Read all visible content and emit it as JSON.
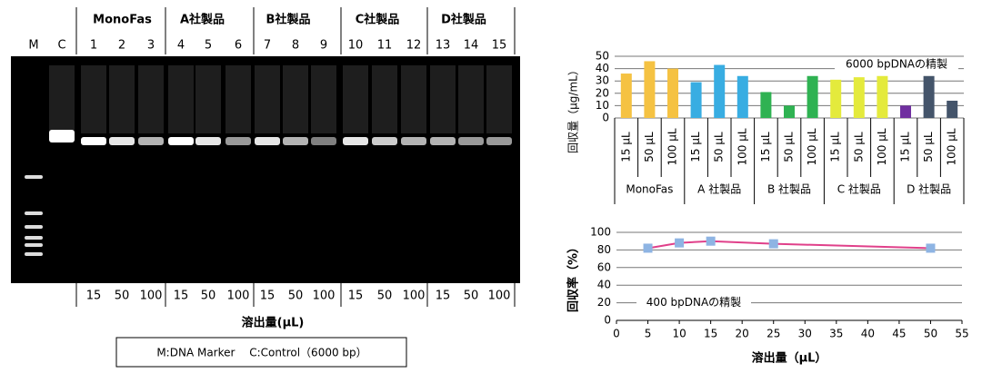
{
  "gel": {
    "groups": [
      "MonoFas",
      "A社製品",
      "B社製品",
      "C社製品",
      "D社製品"
    ],
    "lanes": [
      "M",
      "C",
      "1",
      "2",
      "3",
      "4",
      "5",
      "6",
      "7",
      "8",
      "9",
      "10",
      "11",
      "12",
      "13",
      "14",
      "15"
    ],
    "volumes": [
      "15",
      "50",
      "100",
      "15",
      "50",
      "100",
      "15",
      "50",
      "100",
      "15",
      "50",
      "100",
      "15",
      "50",
      "100"
    ],
    "xlabel": "溶出量(μL)",
    "legend": "M:DNA Marker　 C:Control（6000 bp）"
  },
  "chart_data": [
    {
      "type": "bar",
      "ylabel": "回収量（μg/mL）",
      "annotation": "6000 bpDNAの精製",
      "categories": [
        "15 μL",
        "50 μL",
        "100 μL",
        "15 μL",
        "50 μL",
        "100 μL",
        "15 μL",
        "50 μL",
        "100 μL",
        "15 μL",
        "50 μL",
        "100 μL",
        "15 μL",
        "50 μL",
        "100 μL"
      ],
      "groups": [
        "MonoFas",
        "A 社製品",
        "B 社製品",
        "C 社製品",
        "D 社製品"
      ],
      "values": [
        36,
        46,
        40,
        29,
        43,
        34,
        21,
        10,
        34,
        31,
        33,
        34,
        10,
        34,
        14
      ],
      "colors": [
        "#f5c242",
        "#f5c242",
        "#f5c242",
        "#38ade2",
        "#38ade2",
        "#38ade2",
        "#2fb252",
        "#2fb252",
        "#2fb252",
        "#e4ea3c",
        "#e4ea3c",
        "#e4ea3c",
        "#7030a0",
        "#44546a",
        "#44546a"
      ],
      "ylim": [
        0,
        50
      ],
      "yticks": [
        0,
        10,
        20,
        30,
        40,
        50
      ],
      "grid": true
    },
    {
      "type": "line",
      "ylabel": "回収率（%）",
      "xlabel": "溶出量（μL）",
      "annotation": "400 bpDNAの精製",
      "x": [
        5,
        10,
        15,
        25,
        50
      ],
      "values": [
        82,
        88,
        90,
        87,
        82
      ],
      "color": "#e0408a",
      "marker_color": "#8eb4e3",
      "xlim": [
        0,
        55
      ],
      "xticks": [
        0,
        5,
        10,
        15,
        20,
        25,
        30,
        35,
        40,
        45,
        50,
        55
      ],
      "ylim": [
        0,
        100
      ],
      "yticks": [
        0,
        20,
        40,
        60,
        80,
        100
      ],
      "grid": true
    }
  ]
}
